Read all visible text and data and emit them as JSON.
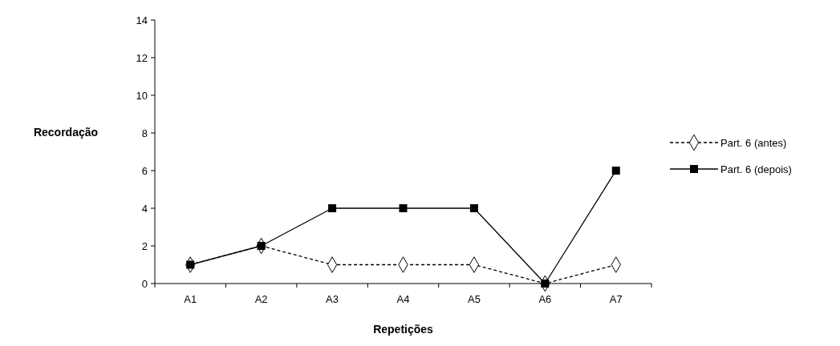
{
  "chart_data": {
    "type": "line",
    "xlabel": "Repetições",
    "ylabel": "Recordação",
    "categories": [
      "A1",
      "A2",
      "A3",
      "A4",
      "A5",
      "A6",
      "A7"
    ],
    "series": [
      {
        "name": "Part. 6 (antes)",
        "color": "#000000",
        "values": [
          1,
          2,
          1,
          1,
          1,
          0,
          1
        ],
        "marker": "diamond",
        "line_style": "dashed"
      },
      {
        "name": "Part. 6 (depois)",
        "color": "#000000",
        "values": [
          1,
          2,
          4,
          4,
          4,
          0,
          6
        ],
        "marker": "square",
        "line_style": "solid"
      }
    ],
    "ylim": [
      0,
      14
    ],
    "yticks": [
      0,
      2,
      4,
      6,
      8,
      10,
      12,
      14
    ],
    "grid": false,
    "legend": "right"
  }
}
